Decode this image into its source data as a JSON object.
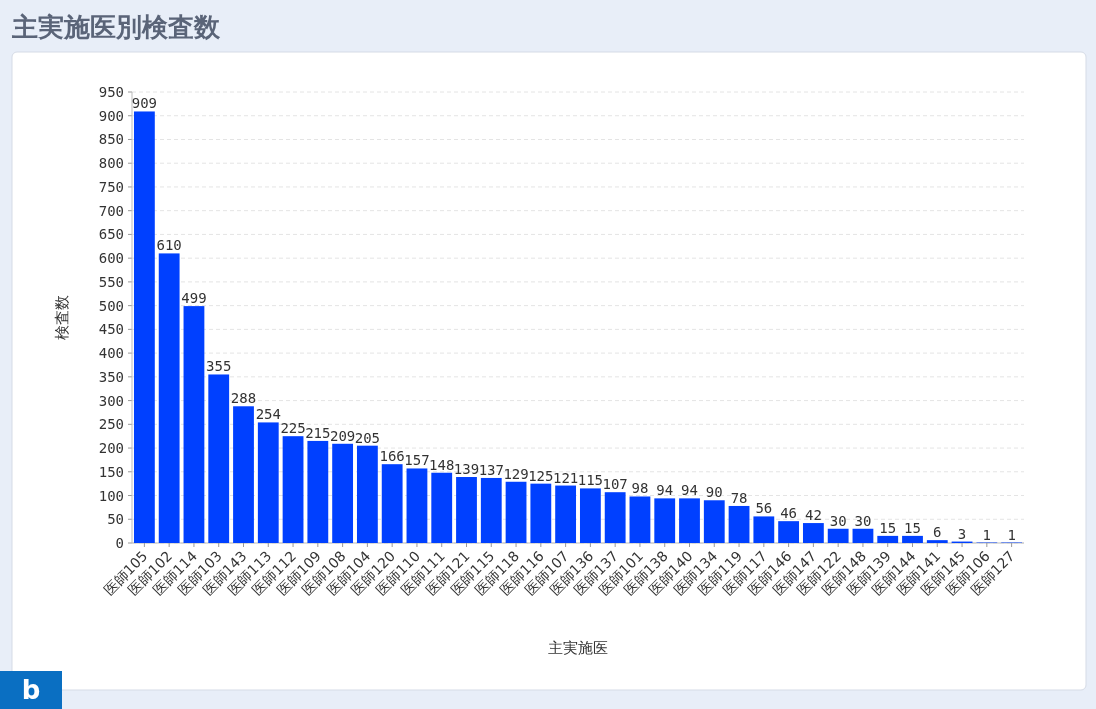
{
  "chart_data": {
    "type": "bar",
    "title": "主実施医別検査数",
    "xlabel": "主実施医",
    "ylabel": "検査数",
    "categories": [
      "医師105",
      "医師102",
      "医師114",
      "医師103",
      "医師143",
      "医師113",
      "医師112",
      "医師109",
      "医師108",
      "医師104",
      "医師120",
      "医師110",
      "医師111",
      "医師121",
      "医師115",
      "医師118",
      "医師116",
      "医師107",
      "医師136",
      "医師137",
      "医師101",
      "医師138",
      "医師140",
      "医師134",
      "医師119",
      "医師117",
      "医師146",
      "医師147",
      "医師122",
      "医師148",
      "医師139",
      "医師144",
      "医師141",
      "医師145",
      "医師106",
      "医師127"
    ],
    "values": [
      909,
      610,
      499,
      355,
      288,
      254,
      225,
      215,
      209,
      205,
      166,
      157,
      148,
      139,
      137,
      129,
      125,
      121,
      115,
      107,
      98,
      94,
      94,
      90,
      78,
      56,
      46,
      42,
      30,
      30,
      15,
      15,
      6,
      3,
      1,
      1
    ],
    "color": "#0040ff",
    "ylim": [
      0,
      950
    ],
    "yticks": [
      0,
      50,
      100,
      150,
      200,
      250,
      300,
      350,
      400,
      450,
      500,
      550,
      600,
      650,
      700,
      750,
      800,
      850,
      900,
      950
    ],
    "grid": "y",
    "data_labels": true,
    "annotations": [
      "b"
    ]
  }
}
